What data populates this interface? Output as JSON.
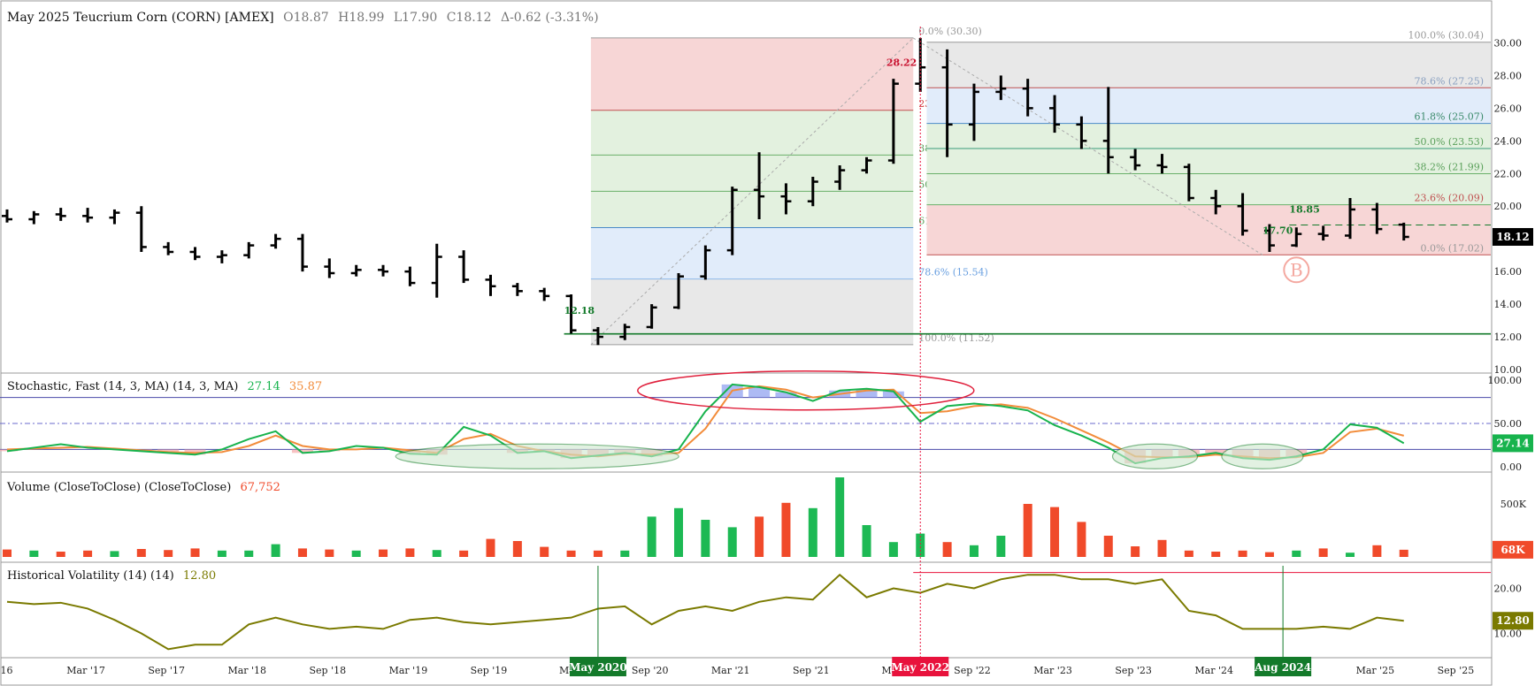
{
  "header": {
    "title": "May 2025 Teucrium Corn (CORN) [AMEX]",
    "open": "O18.87",
    "high": "H18.99",
    "low": "L17.90",
    "close": "C18.12",
    "change": "Δ-0.62 (-3.31%)"
  },
  "colors": {
    "up": "#1db954",
    "down": "#f04a2a",
    "bar": "#000000",
    "fib_red": "#f7d6d6",
    "fib_green": "#e3f1df",
    "fib_blue": "#e1ecfa",
    "fib_gray": "#e8e8e8",
    "stoch_k": "#17b34d",
    "stoch_d": "#f28c3a",
    "hv": "#7a7a00",
    "event_green": "#137a2a",
    "event_red": "#e8123c"
  },
  "chart_data": [
    {
      "type": "bar",
      "name": "price",
      "ylim": [
        10,
        31
      ],
      "yticks": [
        "10.00",
        "12.00",
        "14.00",
        "16.00",
        "18.00",
        "20.00",
        "22.00",
        "24.00",
        "26.00",
        "28.00",
        "30.00"
      ],
      "x_date_range": [
        "2016-09",
        "2025-12"
      ],
      "last_price": "18.12",
      "ohlc": [
        [
          "2016-09",
          19.4,
          19.8,
          19.0,
          19.2
        ],
        [
          "2016-11",
          19.2,
          19.7,
          18.9,
          19.5
        ],
        [
          "2017-01",
          19.5,
          19.9,
          19.1,
          19.4
        ],
        [
          "2017-03",
          19.4,
          19.9,
          19.0,
          19.3
        ],
        [
          "2017-05",
          19.3,
          19.8,
          18.9,
          19.6
        ],
        [
          "2017-07",
          19.6,
          20.0,
          17.2,
          17.5
        ],
        [
          "2017-09",
          17.5,
          17.8,
          17.0,
          17.2
        ],
        [
          "2017-11",
          17.2,
          17.5,
          16.7,
          16.9
        ],
        [
          "2018-01",
          16.9,
          17.3,
          16.5,
          17.0
        ],
        [
          "2018-03",
          17.0,
          17.8,
          16.8,
          17.6
        ],
        [
          "2018-05",
          17.6,
          18.3,
          17.4,
          18.0
        ],
        [
          "2018-07",
          18.0,
          18.3,
          16.0,
          16.3
        ],
        [
          "2018-09",
          16.3,
          16.8,
          15.6,
          15.9
        ],
        [
          "2018-11",
          15.9,
          16.4,
          15.7,
          16.1
        ],
        [
          "2019-01",
          16.1,
          16.4,
          15.7,
          16.0
        ],
        [
          "2019-03",
          16.0,
          16.3,
          15.1,
          15.3
        ],
        [
          "2019-05",
          15.3,
          17.7,
          14.4,
          16.9
        ],
        [
          "2019-07",
          16.9,
          17.3,
          15.3,
          15.5
        ],
        [
          "2019-09",
          15.5,
          15.8,
          14.5,
          15.1
        ],
        [
          "2019-11",
          15.1,
          15.3,
          14.5,
          14.8
        ],
        [
          "2020-01",
          14.8,
          15.0,
          14.2,
          14.5
        ],
        [
          "2020-03",
          14.5,
          14.6,
          12.2,
          12.4
        ],
        [
          "2020-05",
          12.4,
          12.6,
          11.5,
          12.0
        ],
        [
          "2020-07",
          12.0,
          12.8,
          11.8,
          12.6
        ],
        [
          "2020-09",
          12.6,
          14.0,
          12.5,
          13.8
        ],
        [
          "2020-11",
          13.8,
          15.9,
          13.7,
          15.7
        ],
        [
          "2021-01",
          15.7,
          17.6,
          15.5,
          17.3
        ],
        [
          "2021-03",
          17.3,
          21.2,
          17.0,
          21.0
        ],
        [
          "2021-05",
          21.0,
          23.3,
          19.2,
          20.6
        ],
        [
          "2021-07",
          20.6,
          21.4,
          19.5,
          20.3
        ],
        [
          "2021-09",
          20.3,
          21.8,
          20.0,
          21.5
        ],
        [
          "2021-11",
          21.5,
          22.5,
          21.0,
          22.2
        ],
        [
          "2022-01",
          22.2,
          23.0,
          22.0,
          22.8
        ],
        [
          "2022-03",
          22.8,
          27.8,
          22.6,
          27.5
        ],
        [
          "2022-05",
          27.5,
          30.3,
          27.0,
          28.5
        ],
        [
          "2022-07",
          28.5,
          29.6,
          23.0,
          25.0
        ],
        [
          "2022-09",
          25.0,
          27.5,
          24.0,
          27.0
        ],
        [
          "2022-11",
          27.0,
          28.0,
          26.5,
          27.2
        ],
        [
          "2023-01",
          27.2,
          27.8,
          25.5,
          26.0
        ],
        [
          "2023-03",
          26.0,
          26.8,
          24.5,
          25.0
        ],
        [
          "2023-05",
          25.0,
          25.5,
          23.5,
          24.0
        ],
        [
          "2023-07",
          24.0,
          27.3,
          22.0,
          23.0
        ],
        [
          "2023-09",
          23.0,
          23.5,
          22.2,
          22.5
        ],
        [
          "2023-11",
          22.5,
          23.2,
          22.0,
          22.4
        ],
        [
          "2024-01",
          22.4,
          22.6,
          20.3,
          20.5
        ],
        [
          "2024-03",
          20.5,
          21.0,
          19.5,
          20.0
        ],
        [
          "2024-05",
          20.0,
          20.8,
          18.2,
          18.5
        ],
        [
          "2024-07",
          18.5,
          18.9,
          17.2,
          17.6
        ],
        [
          "2024-09",
          17.6,
          18.7,
          17.5,
          18.3
        ],
        [
          "2024-11",
          18.3,
          18.8,
          17.9,
          18.2
        ],
        [
          "2025-01",
          18.2,
          20.5,
          18.0,
          19.8
        ],
        [
          "2025-03",
          19.8,
          20.2,
          18.3,
          18.6
        ],
        [
          "2025-05",
          18.87,
          18.99,
          17.9,
          18.12
        ]
      ],
      "fib_left": {
        "levels": [
          {
            "label": "0.0% (30.30)",
            "value": 30.3
          },
          {
            "label": "23.6% (25.87)",
            "value": 25.87
          },
          {
            "label": "38.2% (23.13)",
            "value": 23.13
          },
          {
            "label": "50.0% (20.91)",
            "value": 20.91
          },
          {
            "label": "61.8% (18.69)",
            "value": 18.69
          },
          {
            "label": "78.6% (15.54)",
            "value": 15.54
          },
          {
            "label": "100.0% (11.52)",
            "value": 11.52
          }
        ],
        "range": [
          "2020-05",
          "2022-05"
        ]
      },
      "fib_right": {
        "levels": [
          {
            "label": "100.0% (30.04)",
            "value": 30.04
          },
          {
            "label": "78.6% (27.25)",
            "value": 27.25
          },
          {
            "label": "61.8% (25.07)",
            "value": 25.07
          },
          {
            "label": "50.0% (23.53)",
            "value": 23.53
          },
          {
            "label": "38.2% (21.99)",
            "value": 21.99
          },
          {
            "label": "23.6% (20.09)",
            "value": 20.09
          },
          {
            "label": "0.0% (17.02)",
            "value": 17.02
          }
        ],
        "range": [
          "2022-06",
          "2025-12"
        ]
      },
      "annotations": [
        {
          "text": "28.22",
          "x": "2022-03",
          "y": 28.6,
          "color": "#c8102e"
        },
        {
          "text": "12.18",
          "x": "2020-03",
          "y": 13.4,
          "color": "#137a2a"
        },
        {
          "text": "18.85",
          "x": "2024-09",
          "y": 19.6,
          "color": "#137a2a"
        },
        {
          "text": "17.70",
          "x": "2024-07",
          "y": 18.3,
          "color": "#137a2a"
        },
        {
          "text": "B",
          "x": "2024-09",
          "y": 16.1,
          "color": "#f4a8a0"
        }
      ],
      "support_line": 12.18,
      "resistance_dashed": 18.85
    },
    {
      "type": "line",
      "name": "stochastic",
      "label": "Stochastic, Fast (14, 3, MA)  (14, 3, MA)",
      "k_value": "27.14",
      "d_value": "35.87",
      "ylim": [
        0,
        100
      ],
      "yticks": [
        "0.00",
        "50.00",
        "100.00"
      ],
      "overbought": 80,
      "oversold": 20,
      "midline": 50,
      "k": [
        18,
        22,
        26,
        22,
        20,
        18,
        16,
        14,
        20,
        32,
        41,
        16,
        18,
        24,
        22,
        15,
        14,
        46,
        36,
        16,
        18,
        10,
        13,
        16,
        12,
        20,
        64,
        95,
        92,
        86,
        76,
        88,
        90,
        87,
        52,
        70,
        73,
        70,
        65,
        48,
        36,
        22,
        4,
        10,
        12,
        16,
        10,
        8,
        12,
        20,
        49,
        45,
        27.14
      ],
      "d": [
        20,
        21,
        22,
        23,
        21,
        19,
        17,
        16,
        17,
        24,
        36,
        24,
        20,
        20,
        22,
        19,
        16,
        32,
        38,
        24,
        18,
        14,
        12,
        15,
        14,
        16,
        44,
        88,
        93,
        89,
        80,
        84,
        88,
        89,
        62,
        64,
        70,
        72,
        68,
        56,
        42,
        28,
        12,
        11,
        11,
        14,
        12,
        10,
        11,
        16,
        40,
        44,
        35.87
      ]
    },
    {
      "type": "bar",
      "name": "volume",
      "label": "Volume (CloseToClose)  (CloseToClose)",
      "value_label": "67,752",
      "last_label": "68K",
      "yticks": [
        "500K"
      ],
      "ylim": [
        0,
        750000
      ],
      "values": [
        70000,
        60000,
        50000,
        60000,
        55000,
        75000,
        65000,
        80000,
        60000,
        60000,
        120000,
        80000,
        70000,
        60000,
        70000,
        80000,
        65000,
        60000,
        170000,
        150000,
        95000,
        60000,
        60000,
        60000,
        380000,
        460000,
        350000,
        280000,
        380000,
        510000,
        460000,
        750000,
        300000,
        140000,
        220000,
        140000,
        110000,
        200000,
        500000,
        470000,
        330000,
        200000,
        100000,
        160000,
        60000,
        50000,
        60000,
        45000,
        60000,
        80000,
        40000,
        110000,
        67752
      ]
    },
    {
      "type": "line",
      "name": "historical_volatility",
      "label": "Historical Volatility (14)  (14)",
      "value_label": "12.80",
      "ylim": [
        5,
        25
      ],
      "yticks": [
        "10.00",
        "20.00"
      ],
      "values": [
        17,
        16.5,
        16.8,
        15.5,
        13,
        10,
        6.5,
        7.5,
        7.5,
        12,
        13.5,
        12,
        11,
        11.5,
        11,
        13,
        13.5,
        12.5,
        12,
        12.5,
        13,
        13.5,
        15.5,
        16,
        12,
        15,
        16,
        15,
        17,
        18,
        17.5,
        23,
        18,
        20,
        19,
        21,
        20,
        22,
        23,
        23,
        22,
        22,
        21,
        22,
        15,
        14,
        11,
        11,
        11,
        11.5,
        11,
        13.5,
        12.8
      ],
      "ref_line": 23.5
    }
  ],
  "x_axis": {
    "ticks": [
      "'16",
      "Mar '17",
      "Sep '17",
      "Mar '18",
      "Sep '18",
      "Mar '19",
      "Sep '19",
      "Mar",
      "Sep '20",
      "Mar '21",
      "Sep '21",
      "Mar",
      "Sep '22",
      "Mar '23",
      "Sep '23",
      "Mar '24",
      "4",
      "Mar '25",
      "Sep '25"
    ]
  },
  "events": [
    {
      "label": "May 2020",
      "color": "green",
      "x": "2020-05"
    },
    {
      "label": "May 2022",
      "color": "red",
      "x": "2022-05"
    },
    {
      "label": "Aug 2024",
      "color": "green",
      "x": "2024-08"
    }
  ]
}
